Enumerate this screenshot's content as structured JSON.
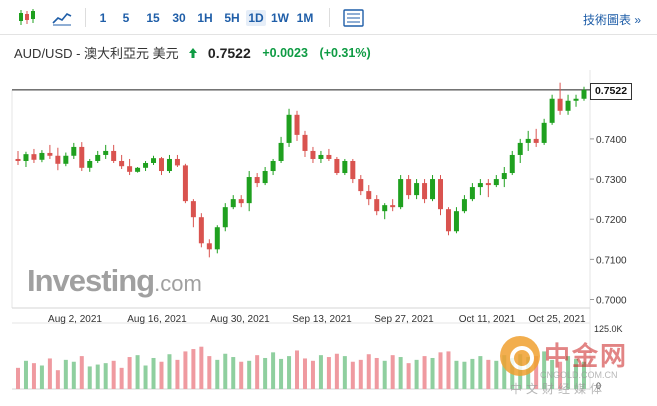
{
  "toolbar": {
    "chart_type_icons": [
      "candlestick-icon",
      "area-chart-icon"
    ],
    "periods": [
      "1",
      "5",
      "15",
      "30",
      "1H",
      "5H",
      "1D",
      "1W",
      "1M"
    ],
    "active_period": "1D",
    "tech_link": "技術圖表 »"
  },
  "header": {
    "pair": "AUD/USD - 澳大利亞元 美元",
    "price": "0.7522",
    "change": "+0.0023",
    "change_pct": "(+0.31%)",
    "change_color": "#0e9b43"
  },
  "logo": {
    "brand": "Investing",
    "domain": ".com"
  },
  "watermark": {
    "cn": "中金网",
    "url": "CNGOLD.COM.CN",
    "sub": "中文财经媒体"
  },
  "colors": {
    "up": "#1fa01f",
    "down": "#d9534f",
    "up_volume": "#8fcf9f",
    "down_volume": "#ef9aa0",
    "accent": "#1f5ea8"
  },
  "chart_data": {
    "type": "candlestick",
    "current_price": "0.7522",
    "y_ticks": [
      "0.7400",
      "0.7300",
      "0.7200",
      "0.7100",
      "0.7000"
    ],
    "x_labels": [
      "Aug 2, 2021",
      "Aug 16, 2021",
      "Aug 30, 2021",
      "Sep 13, 2021",
      "Sep 27, 2021",
      "Oct 11, 2021",
      "Oct 25, 2021"
    ],
    "volume_label": "125.0K",
    "volume_zero_label": "0",
    "candles": [
      [
        0.735,
        0.737,
        0.7335,
        0.7345
      ],
      [
        0.7345,
        0.7368,
        0.733,
        0.7362
      ],
      [
        0.7362,
        0.7375,
        0.734,
        0.7348
      ],
      [
        0.7348,
        0.7372,
        0.7342,
        0.7365
      ],
      [
        0.7365,
        0.7385,
        0.735,
        0.7358
      ],
      [
        0.7358,
        0.7378,
        0.7322,
        0.7338
      ],
      [
        0.7338,
        0.7366,
        0.7332,
        0.7358
      ],
      [
        0.7358,
        0.739,
        0.735,
        0.738
      ],
      [
        0.738,
        0.7392,
        0.732,
        0.7328
      ],
      [
        0.7328,
        0.735,
        0.7318,
        0.7345
      ],
      [
        0.7345,
        0.737,
        0.734,
        0.736
      ],
      [
        0.736,
        0.7385,
        0.735,
        0.737
      ],
      [
        0.737,
        0.7385,
        0.734,
        0.7345
      ],
      [
        0.7345,
        0.736,
        0.7325,
        0.7332
      ],
      [
        0.7332,
        0.735,
        0.731,
        0.7318
      ],
      [
        0.7318,
        0.733,
        0.7316,
        0.7328
      ],
      [
        0.7328,
        0.7345,
        0.732,
        0.734
      ],
      [
        0.734,
        0.7358,
        0.7335,
        0.7352
      ],
      [
        0.7352,
        0.7355,
        0.731,
        0.732
      ],
      [
        0.732,
        0.736,
        0.7315,
        0.735
      ],
      [
        0.735,
        0.736,
        0.733,
        0.7334
      ],
      [
        0.7334,
        0.7338,
        0.724,
        0.7245
      ],
      [
        0.7245,
        0.725,
        0.718,
        0.7205
      ],
      [
        0.7205,
        0.7215,
        0.713,
        0.714
      ],
      [
        0.714,
        0.715,
        0.7105,
        0.7125
      ],
      [
        0.7125,
        0.7185,
        0.7115,
        0.718
      ],
      [
        0.718,
        0.724,
        0.717,
        0.723
      ],
      [
        0.723,
        0.726,
        0.7225,
        0.725
      ],
      [
        0.725,
        0.726,
        0.723,
        0.724
      ],
      [
        0.724,
        0.732,
        0.722,
        0.7305
      ],
      [
        0.7305,
        0.7315,
        0.728,
        0.729
      ],
      [
        0.729,
        0.733,
        0.7285,
        0.732
      ],
      [
        0.732,
        0.735,
        0.731,
        0.7345
      ],
      [
        0.7345,
        0.7405,
        0.734,
        0.739
      ],
      [
        0.739,
        0.7475,
        0.738,
        0.746
      ],
      [
        0.746,
        0.747,
        0.7395,
        0.741
      ],
      [
        0.741,
        0.742,
        0.7355,
        0.737
      ],
      [
        0.737,
        0.738,
        0.734,
        0.735
      ],
      [
        0.735,
        0.737,
        0.734,
        0.736
      ],
      [
        0.736,
        0.7375,
        0.7345,
        0.735
      ],
      [
        0.735,
        0.7355,
        0.731,
        0.7315
      ],
      [
        0.7315,
        0.735,
        0.731,
        0.7345
      ],
      [
        0.7345,
        0.735,
        0.729,
        0.73
      ],
      [
        0.73,
        0.731,
        0.726,
        0.727
      ],
      [
        0.727,
        0.7285,
        0.7235,
        0.725
      ],
      [
        0.725,
        0.726,
        0.721,
        0.722
      ],
      [
        0.722,
        0.724,
        0.72,
        0.7235
      ],
      [
        0.7235,
        0.725,
        0.722,
        0.723
      ],
      [
        0.723,
        0.731,
        0.7225,
        0.73
      ],
      [
        0.73,
        0.731,
        0.725,
        0.726
      ],
      [
        0.726,
        0.73,
        0.725,
        0.729
      ],
      [
        0.729,
        0.73,
        0.724,
        0.725
      ],
      [
        0.725,
        0.731,
        0.7245,
        0.73
      ],
      [
        0.73,
        0.731,
        0.721,
        0.7225
      ],
      [
        0.7225,
        0.723,
        0.716,
        0.717
      ],
      [
        0.717,
        0.723,
        0.7165,
        0.722
      ],
      [
        0.722,
        0.726,
        0.7215,
        0.725
      ],
      [
        0.725,
        0.729,
        0.7245,
        0.728
      ],
      [
        0.728,
        0.73,
        0.726,
        0.729
      ],
      [
        0.729,
        0.73,
        0.7255,
        0.7285
      ],
      [
        0.7285,
        0.731,
        0.728,
        0.73
      ],
      [
        0.73,
        0.733,
        0.728,
        0.7315
      ],
      [
        0.7315,
        0.737,
        0.731,
        0.736
      ],
      [
        0.736,
        0.74,
        0.734,
        0.739
      ],
      [
        0.739,
        0.742,
        0.737,
        0.74
      ],
      [
        0.74,
        0.7425,
        0.738,
        0.739
      ],
      [
        0.739,
        0.745,
        0.7385,
        0.744
      ],
      [
        0.744,
        0.751,
        0.7435,
        0.75
      ],
      [
        0.75,
        0.754,
        0.746,
        0.747
      ],
      [
        0.747,
        0.751,
        0.746,
        0.7495
      ],
      [
        0.7495,
        0.751,
        0.748,
        0.75
      ],
      [
        0.75,
        0.753,
        0.7495,
        0.7522
      ]
    ],
    "volumes": [
      45,
      60,
      55,
      50,
      65,
      40,
      62,
      58,
      70,
      48,
      52,
      55,
      60,
      45,
      68,
      72,
      50,
      66,
      58,
      74,
      62,
      80,
      85,
      90,
      70,
      62,
      75,
      68,
      58,
      60,
      72,
      66,
      78,
      64,
      70,
      82,
      65,
      60,
      72,
      68,
      75,
      70,
      58,
      62,
      74,
      66,
      60,
      72,
      68,
      55,
      62,
      70,
      66,
      78,
      80,
      60,
      58,
      64,
      70,
      62,
      60,
      72,
      66,
      74,
      68,
      70,
      80,
      62,
      58,
      70,
      64,
      58
    ]
  }
}
